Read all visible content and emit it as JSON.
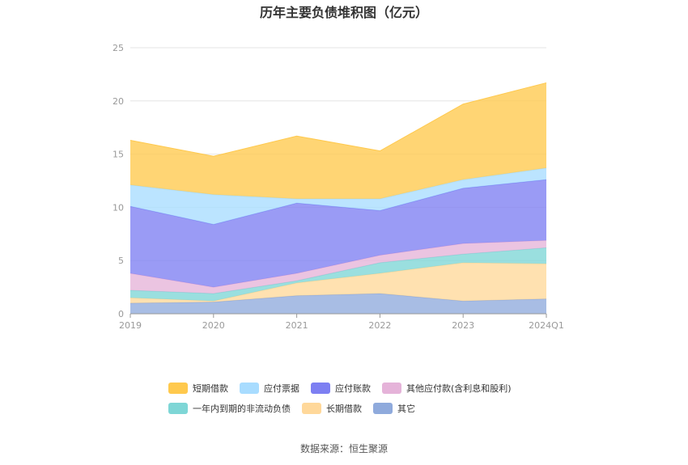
{
  "chart_data": {
    "type": "area",
    "stacked": true,
    "title": "历年主要负债堆积图（亿元）",
    "categories": [
      "2019",
      "2020",
      "2021",
      "2022",
      "2023",
      "2024Q1"
    ],
    "ylim": [
      0,
      25
    ],
    "yticks": [
      "0",
      "5",
      "10",
      "15",
      "20",
      "25"
    ],
    "grid": true,
    "legend_position": "bottom",
    "series": [
      {
        "name": "其它",
        "color": "#8faadc",
        "values": [
          1.0,
          1.1,
          1.7,
          1.9,
          1.2,
          1.4
        ]
      },
      {
        "name": "长期借款",
        "color": "#ffd89a",
        "values": [
          0.5,
          0.1,
          1.2,
          1.9,
          3.6,
          3.3
        ]
      },
      {
        "name": "一年内到期的非流动负债",
        "color": "#7ed6d6",
        "values": [
          0.7,
          0.7,
          0.2,
          1.0,
          0.8,
          1.5
        ]
      },
      {
        "name": "其他应付款(含利息和股利)",
        "color": "#e5b3d9",
        "values": [
          1.6,
          0.6,
          0.7,
          0.7,
          1.0,
          0.7
        ]
      },
      {
        "name": "应付账款",
        "color": "#7d7ff2",
        "values": [
          6.3,
          5.9,
          6.6,
          4.2,
          5.2,
          5.7
        ]
      },
      {
        "name": "应付票据",
        "color": "#a8dcff",
        "values": [
          2.0,
          2.8,
          0.4,
          1.1,
          0.8,
          1.1
        ]
      },
      {
        "name": "短期借款",
        "color": "#ffc94d",
        "values": [
          4.2,
          3.6,
          5.9,
          4.5,
          7.1,
          8.0
        ]
      }
    ]
  },
  "legend_order": [
    {
      "name": "短期借款",
      "color": "#ffc94d"
    },
    {
      "name": "应付票据",
      "color": "#a8dcff"
    },
    {
      "name": "应付账款",
      "color": "#7d7ff2"
    },
    {
      "name": "其他应付款(含利息和股利)",
      "color": "#e5b3d9"
    },
    {
      "name": "一年内到期的非流动负债",
      "color": "#7ed6d6"
    },
    {
      "name": "长期借款",
      "color": "#ffd89a"
    },
    {
      "name": "其它",
      "color": "#8faadc"
    }
  ],
  "source": "数据来源：恒生聚源"
}
